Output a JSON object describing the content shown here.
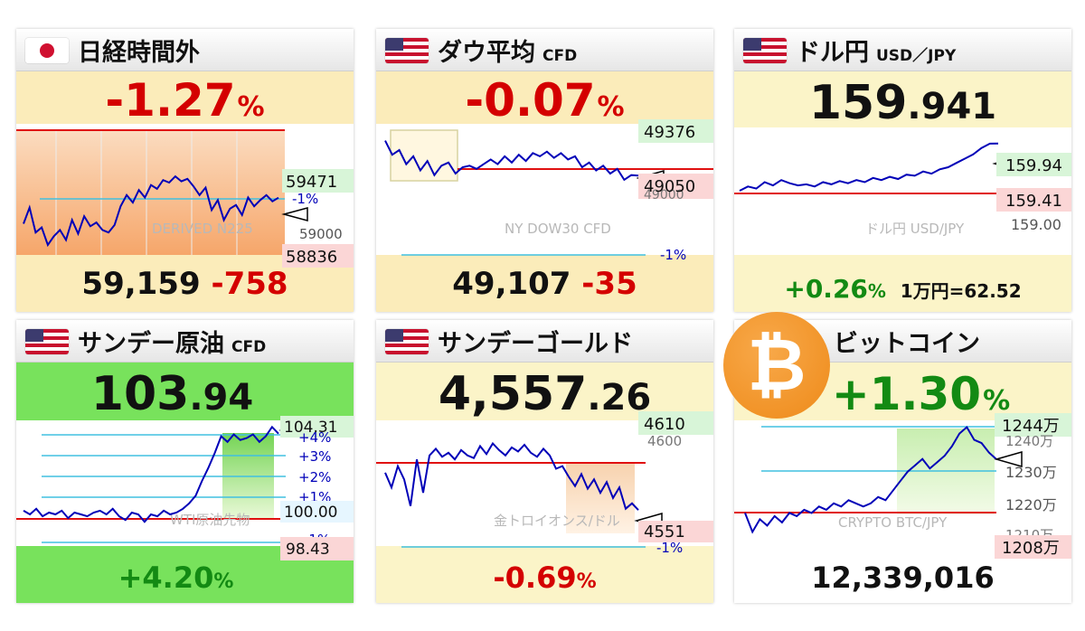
{
  "chart_data": [
    {
      "type": "line",
      "id": "nikkei",
      "title": "日経時間外",
      "subtitle": "",
      "flag": "japan-flag",
      "change_percent": "-1.27",
      "percent_sign": "%",
      "bottom_price": "59,159",
      "bottom_change": "-758",
      "watermark": "DERIVED N225",
      "labels": {
        "high": "59471",
        "minus1": "-1%",
        "level": "59000",
        "low": "58836"
      },
      "y_range": [
        58700,
        59700
      ],
      "reference": 59917,
      "values": [
        58950,
        59080,
        58880,
        58920,
        58780,
        58850,
        58900,
        58820,
        58980,
        58870,
        59010,
        58930,
        58960,
        58900,
        58880,
        58940,
        59090,
        59180,
        59120,
        59220,
        59160,
        59260,
        59230,
        59300,
        59280,
        59330,
        59290,
        59310,
        59250,
        59180,
        59240,
        59060,
        59140,
        58980,
        59070,
        59100,
        59020,
        59160,
        59090,
        59140,
        59180,
        59130,
        59159
      ]
    },
    {
      "type": "line",
      "id": "dow",
      "title": "ダウ平均",
      "subtitle": "CFD",
      "flag": "us-flag",
      "change_percent": "-0.07",
      "percent_sign": "%",
      "bottom_price": "49,107",
      "bottom_change": "-35",
      "watermark": "NY DOW30 CFD",
      "labels": {
        "high": "49376",
        "level": "49050",
        "low": "49000",
        "minus1": "-1%"
      },
      "y_range": [
        48600,
        49420
      ],
      "reference": 49142,
      "values": [
        49330,
        49240,
        49270,
        49180,
        49230,
        49140,
        49200,
        49110,
        49170,
        49190,
        49120,
        49160,
        49170,
        49150,
        49180,
        49210,
        49180,
        49230,
        49190,
        49240,
        49200,
        49250,
        49230,
        49260,
        49220,
        49250,
        49210,
        49230,
        49160,
        49190,
        49140,
        49170,
        49120,
        49150,
        49080,
        49110,
        49107
      ]
    },
    {
      "type": "line",
      "id": "usdjpy",
      "title": "ドル円",
      "subtitle": "USD／JPY",
      "flag": "us-flag",
      "big_integer": "159",
      "big_decimal": ".941",
      "bottom_change": "+0.26",
      "percent_sign": "%",
      "bottom_extra": "1万円=62.52",
      "watermark": "ドル円 USD/JPY",
      "labels": {
        "high": "159.94",
        "low": "159.41",
        "level": "159.00"
      },
      "y_range": [
        158.9,
        160.1
      ],
      "reference": 159.52,
      "values": [
        159.5,
        159.54,
        159.52,
        159.58,
        159.55,
        159.6,
        159.57,
        159.55,
        159.56,
        159.54,
        159.58,
        159.56,
        159.59,
        159.57,
        159.6,
        159.58,
        159.62,
        159.6,
        159.63,
        159.61,
        159.65,
        159.64,
        159.68,
        159.66,
        159.7,
        159.72,
        159.76,
        159.8,
        159.84,
        159.9,
        159.94,
        159.941
      ]
    },
    {
      "type": "line",
      "id": "oil",
      "title": "サンデー原油",
      "subtitle": "CFD",
      "flag": "us-flag",
      "big_integer": "103",
      "big_decimal": ".94",
      "bottom_change": "+4.20",
      "percent_sign": "%",
      "watermark": "WTI原油先物",
      "labels": {
        "high": "104.31",
        "p4": "+4%",
        "p3": "+3%",
        "p2": "+2%",
        "p1": "+1%",
        "level": "100.00",
        "low": "98.43",
        "m1": "-1%"
      },
      "y_range": [
        97.9,
        104.8
      ],
      "reference": 99.74,
      "values": [
        99.8,
        99.6,
        99.9,
        99.5,
        99.7,
        99.6,
        99.8,
        99.4,
        99.7,
        99.6,
        99.5,
        99.7,
        99.8,
        99.6,
        99.9,
        99.5,
        99.3,
        99.7,
        99.6,
        99.2,
        99.6,
        99.5,
        99.8,
        99.6,
        99.7,
        99.9,
        100.2,
        100.6,
        101.4,
        102.1,
        102.9,
        103.8,
        103.5,
        103.9,
        103.6,
        103.7,
        103.9,
        103.5,
        103.8,
        104.3,
        103.94
      ]
    },
    {
      "type": "line",
      "id": "gold",
      "title": "サンデーゴールド",
      "subtitle": "",
      "flag": "us-flag",
      "big_integer": "4,557",
      "big_decimal": ".26",
      "bottom_change": "-0.69",
      "percent_sign": "%",
      "watermark": "金トロイオンス/ドル",
      "labels": {
        "high": "4610",
        "level": "4600",
        "low": "4551",
        "minus1": "-1%"
      },
      "y_range": [
        4530,
        4625
      ],
      "reference": 4588,
      "values": [
        4585,
        4574,
        4590,
        4580,
        4560,
        4595,
        4570,
        4598,
        4603,
        4597,
        4600,
        4595,
        4602,
        4598,
        4596,
        4605,
        4599,
        4607,
        4602,
        4598,
        4604,
        4601,
        4606,
        4600,
        4597,
        4603,
        4598,
        4588,
        4590,
        4582,
        4575,
        4584,
        4573,
        4580,
        4570,
        4578,
        4566,
        4574,
        4558,
        4562,
        4557
      ]
    },
    {
      "type": "line",
      "id": "bitcoin",
      "title": "ビットコイン",
      "subtitle": "",
      "logo": "bitcoin-logo",
      "change_percent": "+1.30",
      "percent_sign": "%",
      "bottom_price": "12,339,016",
      "watermark": "CRYPTO BTC/JPY",
      "labels": {
        "high": "1244万",
        "l1240": "1240万",
        "l1230": "1230万",
        "l1220": "1220万",
        "l1210": "1210万",
        "low": "1208万"
      },
      "y_range": [
        12060000,
        12470000
      ],
      "reference": 12180000,
      "values": [
        12170000,
        12110000,
        12150000,
        12130000,
        12160000,
        12140000,
        12170000,
        12160000,
        12180000,
        12170000,
        12190000,
        12180000,
        12200000,
        12190000,
        12210000,
        12200000,
        12190000,
        12200000,
        12220000,
        12210000,
        12240000,
        12270000,
        12300000,
        12320000,
        12340000,
        12310000,
        12330000,
        12350000,
        12380000,
        12420000,
        12440000,
        12400000,
        12390000,
        12360000,
        12339016
      ]
    }
  ],
  "colors": {
    "red": "#d40000",
    "green": "#138a13",
    "blue": "#0000b8",
    "cyan": "#40c0e0",
    "refline": "#e01010"
  }
}
